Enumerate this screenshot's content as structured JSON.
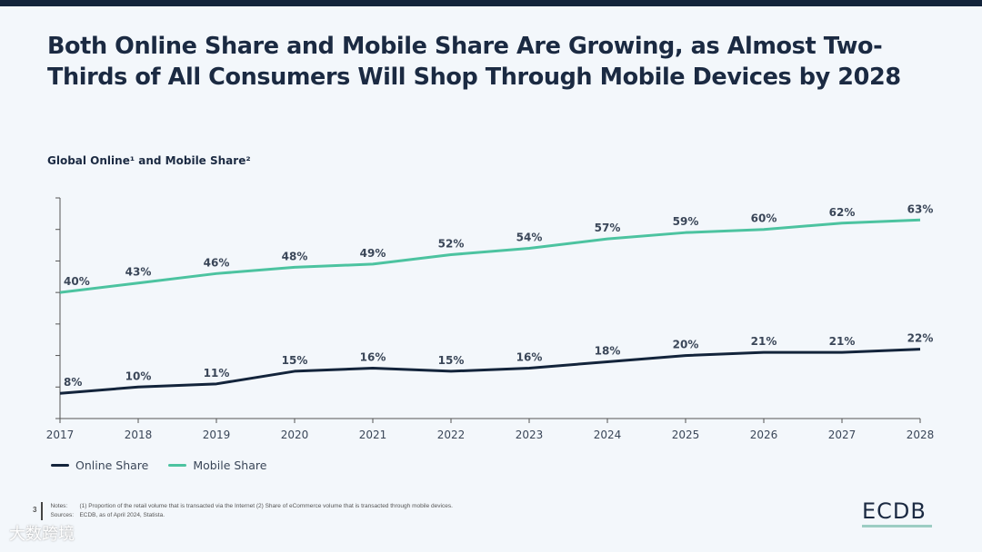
{
  "title": "Both Online Share and Mobile Share Are Growing, as Almost Two-Thirds of All Consumers  Will Shop Through Mobile Devices by 2028",
  "chart_data": {
    "type": "line",
    "title": "Global Online¹ and Mobile Share²",
    "x": [
      "2017",
      "2018",
      "2019",
      "2020",
      "2021",
      "2022",
      "2023",
      "2024",
      "2025",
      "2026",
      "2027",
      "2028"
    ],
    "ylim": [
      0,
      70
    ],
    "grid": false,
    "legend_position": "bottom-left",
    "series": [
      {
        "name": "Online Share",
        "color": "#13243b",
        "values": [
          8,
          10,
          11,
          15,
          16,
          15,
          16,
          18,
          20,
          21,
          21,
          22
        ]
      },
      {
        "name": "Mobile Share",
        "color": "#4cc3a0",
        "values": [
          40,
          43,
          46,
          48,
          49,
          52,
          54,
          57,
          59,
          60,
          62,
          63
        ]
      }
    ]
  },
  "footer": {
    "page": "3",
    "notes_label": "Notes:",
    "notes": "(1) Proportion of the retail volume that is transacted via the Internet (2) Share of eCommerce volume that is transacted through mobile devices.",
    "sources_label": "Sources:",
    "sources": "ECDB, as of April 2024, Statista.",
    "logo": "ECDB",
    "watermark": "大数跨境"
  }
}
